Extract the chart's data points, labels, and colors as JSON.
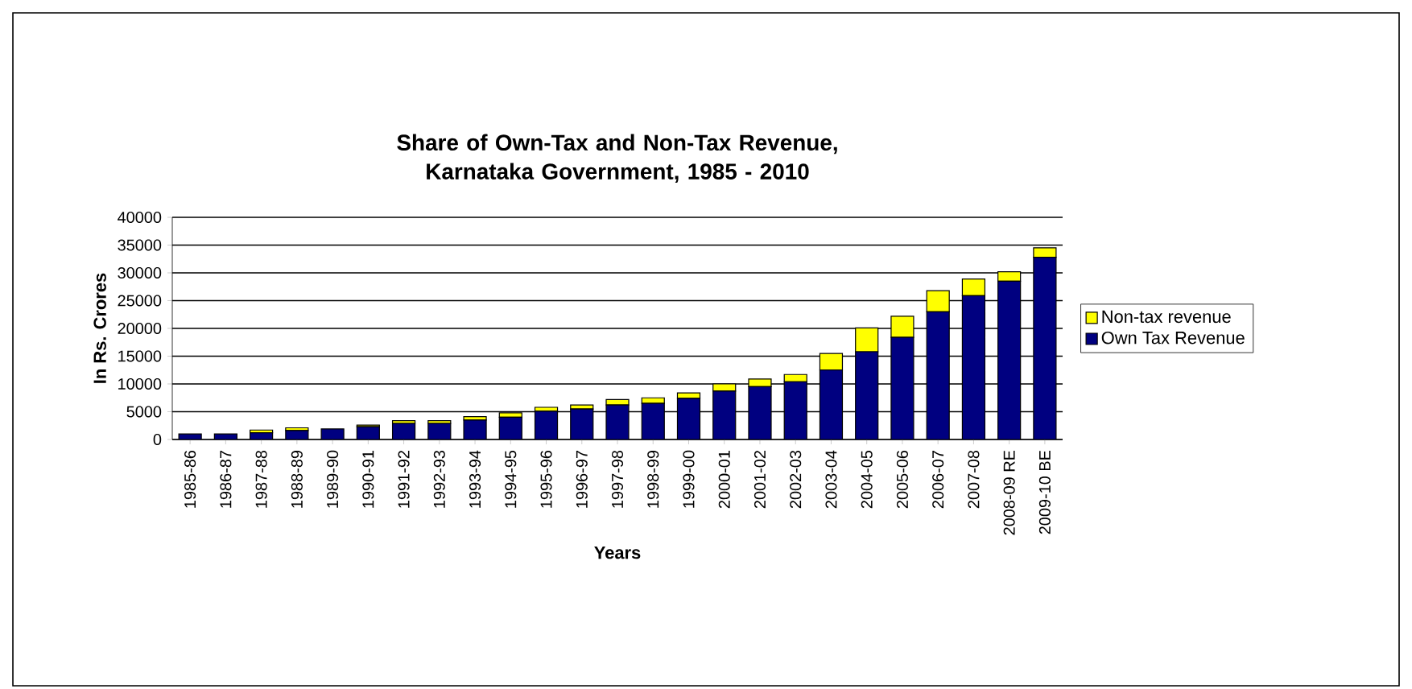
{
  "chart_data": {
    "type": "bar",
    "stacked": true,
    "title": "Share of Own-Tax and Non-Tax Revenue, Karnataka Government, 1985 - 2010",
    "xlabel": "Years",
    "ylabel": "In Rs. Crores",
    "categories": [
      "1985-86",
      "1986-87",
      "1987-88",
      "1988-89",
      "1989-90",
      "1990-91",
      "1991-92",
      "1992-93",
      "1993-94",
      "1994-95",
      "1995-96",
      "1996-97",
      "1997-98",
      "1998-99",
      "1999-00",
      "2000-01",
      "2001-02",
      "2002-03",
      "2003-04",
      "2004-05",
      "2005-06",
      "2006-07",
      "2007-08",
      "2008-09 RE",
      "2009-10 BE"
    ],
    "series": [
      {
        "name": "Own Tax Revenue",
        "color": "#000080",
        "values": [
          1000,
          1000,
          1200,
          1600,
          1900,
          2300,
          2900,
          2900,
          3500,
          4000,
          5100,
          5500,
          6200,
          6500,
          7400,
          8700,
          9500,
          10400,
          12500,
          15800,
          18400,
          23000,
          25900,
          28500,
          32800
        ]
      },
      {
        "name": "Non-tax revenue",
        "color": "#ffff00",
        "values": [
          null,
          null,
          500,
          500,
          null,
          300,
          500,
          500,
          600,
          800,
          700,
          700,
          1000,
          1000,
          1000,
          1300,
          1400,
          1300,
          3000,
          4300,
          3800,
          3800,
          3000,
          1700,
          1700
        ]
      }
    ],
    "ylim": [
      0,
      40000
    ],
    "yticks": [
      0,
      5000,
      10000,
      15000,
      20000,
      25000,
      30000,
      35000,
      40000
    ],
    "grid": "y",
    "legend": "right"
  }
}
